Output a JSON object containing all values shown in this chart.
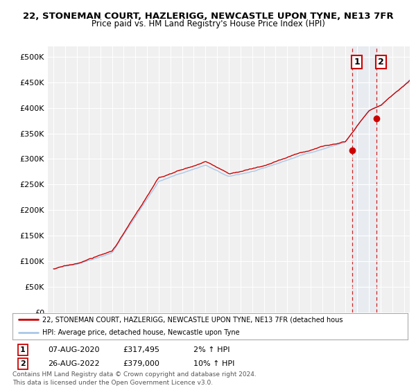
{
  "title": "22, STONEMAN COURT, HAZLERIGG, NEWCASTLE UPON TYNE, NE13 7FR",
  "subtitle": "Price paid vs. HM Land Registry's House Price Index (HPI)",
  "ylabel_ticks": [
    "£0",
    "£50K",
    "£100K",
    "£150K",
    "£200K",
    "£250K",
    "£300K",
    "£350K",
    "£400K",
    "£450K",
    "£500K"
  ],
  "ytick_values": [
    0,
    50000,
    100000,
    150000,
    200000,
    250000,
    300000,
    350000,
    400000,
    450000,
    500000
  ],
  "ylim": [
    0,
    520000
  ],
  "xlim_start": 1994.5,
  "xlim_end": 2025.5,
  "background_color": "#ffffff",
  "plot_bg_color": "#f0f0f0",
  "grid_color": "#ffffff",
  "hpi_line_color": "#aac8e8",
  "price_line_color": "#cc0000",
  "sale1_date": 2020.6,
  "sale1_price": 317495,
  "sale2_date": 2022.65,
  "sale2_price": 379000,
  "legend_label1": "22, STONEMAN COURT, HAZLERIGG, NEWCASTLE UPON TYNE, NE13 7FR (detached hous",
  "legend_label2": "HPI: Average price, detached house, Newcastle upon Tyne",
  "footnote": "Contains HM Land Registry data © Crown copyright and database right 2024.\nThis data is licensed under the Open Government Licence v3.0.",
  "table_row1": [
    "1",
    "07-AUG-2020",
    "£317,495",
    "2% ↑ HPI"
  ],
  "table_row2": [
    "2",
    "26-AUG-2022",
    "£379,000",
    "10% ↑ HPI"
  ]
}
